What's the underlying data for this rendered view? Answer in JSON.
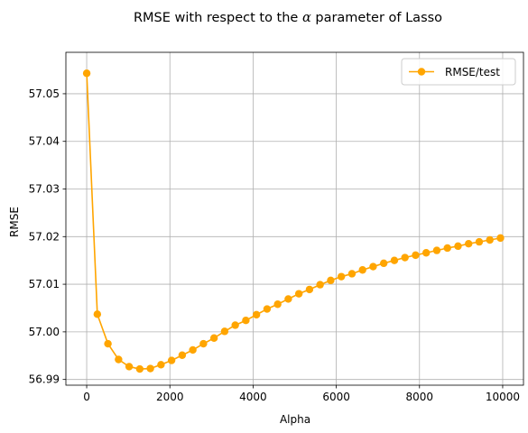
{
  "chart_data": {
    "type": "line",
    "title": "RMSE with respect to the α parameter of Lasso",
    "title_prefix": "RMSE with respect to the ",
    "title_symbol": "α",
    "title_suffix": " parameter of Lasso",
    "xlabel": "Alpha",
    "ylabel": "RMSE",
    "xlim": [
      -500,
      10500
    ],
    "ylim": [
      56.9888,
      57.0587
    ],
    "x_ticks": [
      0,
      2000,
      4000,
      6000,
      8000,
      10000
    ],
    "y_ticks": [
      56.99,
      57.0,
      57.01,
      57.02,
      57.03,
      57.04,
      57.05
    ],
    "y_tick_labels": [
      "56.99",
      "57.00",
      "57.01",
      "57.02",
      "57.03",
      "57.04",
      "57.05"
    ],
    "grid": true,
    "legend_position": "top-right",
    "series": [
      {
        "name": "RMSE/test",
        "color": "#FFA500",
        "marker": "circle",
        "x": [
          1,
          256,
          511,
          766,
          1021,
          1276,
          1531,
          1786,
          2041,
          2296,
          2551,
          2806,
          3061,
          3316,
          3571,
          3826,
          4081,
          4336,
          4591,
          4846,
          5101,
          5356,
          5611,
          5866,
          6121,
          6376,
          6631,
          6886,
          7141,
          7396,
          7651,
          7906,
          8161,
          8416,
          8671,
          8926,
          9181,
          9436,
          9691,
          9946
        ],
        "y": [
          57.0543,
          57.0037,
          56.9975,
          56.9942,
          56.9927,
          56.9922,
          56.9923,
          56.9931,
          56.994,
          56.9951,
          56.9962,
          56.9975,
          56.9987,
          57.0001,
          57.0014,
          57.0024,
          57.0036,
          57.0048,
          57.0058,
          57.0069,
          57.008,
          57.0089,
          57.0099,
          57.0108,
          57.0116,
          57.0122,
          57.013,
          57.0137,
          57.0144,
          57.015,
          57.0156,
          57.0161,
          57.0166,
          57.0171,
          57.0176,
          57.018,
          57.0185,
          57.0189,
          57.0193,
          57.0197
        ]
      }
    ]
  }
}
